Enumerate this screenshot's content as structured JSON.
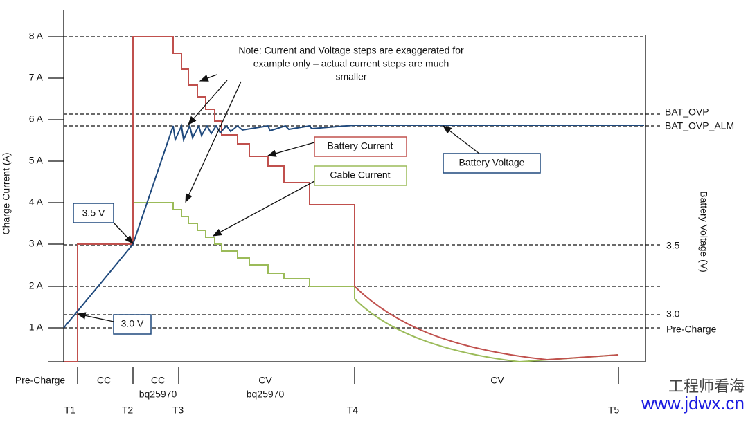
{
  "title_axis_left": "Charge Current (A)",
  "title_axis_right": "Battery Voltage (V)",
  "left_ticks": [
    "8 A",
    "7 A",
    "6 A",
    "5 A",
    "4 A",
    "3 A",
    "2 A",
    "1 A"
  ],
  "right_labels": [
    "BAT_OVP",
    "BAT_OVP_ALM",
    "3.5",
    "3.0",
    "Pre-Charge"
  ],
  "note": [
    "Note: Current and Voltage steps are exaggerated for",
    "example only – actual current steps are much",
    "smaller"
  ],
  "callouts": {
    "v35": "3.5 V",
    "v30": "3.0 V",
    "battery_current": "Battery Current",
    "cable_current": "Cable Current",
    "battery_voltage": "Battery Voltage"
  },
  "phases": [
    "Pre-Charge",
    "CC",
    "CC",
    "bq25970",
    "CV",
    "bq25970",
    "CV"
  ],
  "times": [
    "T1",
    "T2",
    "T3",
    "T4",
    "T5"
  ],
  "watermark": [
    "工程师看海",
    "www.jdwx.cn"
  ]
}
